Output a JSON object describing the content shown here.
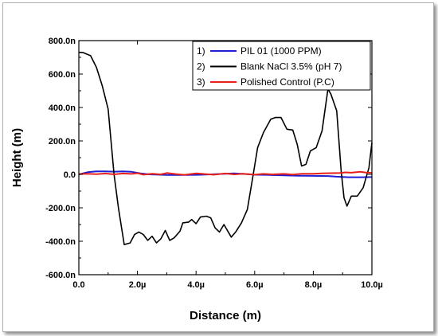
{
  "chart_data": {
    "type": "line",
    "xlabel": "Distance (m)",
    "ylabel": "Height (m)",
    "xlim": [
      0,
      10
    ],
    "ylim": [
      -600,
      800
    ],
    "x_units": "µm",
    "y_units": "nm",
    "grid": false,
    "legend_position": "top-right",
    "x_ticks": [
      0,
      2,
      4,
      6,
      8,
      10
    ],
    "x_tick_labels": [
      "0.0",
      "2.0µ",
      "4.0µ",
      "6.0µ",
      "8.0µ",
      "10.0µ"
    ],
    "y_ticks": [
      800,
      600,
      400,
      200,
      0,
      -200,
      -400,
      -600
    ],
    "y_tick_labels": [
      "800.0n",
      "600.0n",
      "400.0n",
      "200.0n",
      "0.0",
      "-200.0n",
      "-400.0n",
      "-600.0n"
    ],
    "series": [
      {
        "name": "PIL 01 (1000 PPM)",
        "legend_index": "1)",
        "color": "#1f1fd6",
        "x": [
          0,
          0.3,
          0.6,
          0.9,
          1.2,
          1.5,
          1.8,
          2.1,
          2.4,
          2.7,
          3.0,
          3.5,
          4.0,
          4.5,
          5.0,
          5.3,
          5.6,
          6.0,
          6.5,
          7.0,
          7.5,
          8.0,
          8.5,
          8.8,
          9.2,
          9.6,
          10.0
        ],
        "values": [
          0,
          13,
          18,
          18,
          16,
          18,
          15,
          6,
          0,
          -2,
          -4,
          -4,
          -3,
          0,
          4,
          6,
          3,
          -2,
          -4,
          -6,
          -8,
          -9,
          -10,
          -14,
          -17,
          -17,
          -16
        ]
      },
      {
        "name": "Blank NaCl 3.5% (pH 7)",
        "legend_index": "2)",
        "color": "#000000",
        "x": [
          0,
          0.15,
          0.4,
          0.6,
          0.8,
          1.0,
          1.2,
          1.35,
          1.55,
          1.75,
          1.9,
          2.05,
          2.2,
          2.35,
          2.5,
          2.65,
          2.8,
          2.95,
          3.1,
          3.25,
          3.45,
          3.55,
          3.75,
          3.85,
          4.0,
          4.15,
          4.35,
          4.5,
          4.65,
          4.8,
          4.95,
          5.2,
          5.35,
          5.55,
          5.75,
          5.95,
          6.1,
          6.3,
          6.55,
          6.7,
          6.9,
          7.1,
          7.3,
          7.45,
          7.6,
          7.75,
          7.9,
          8.1,
          8.3,
          8.5,
          8.6,
          8.8,
          8.95,
          9.05,
          9.15,
          9.3,
          9.5,
          9.7,
          9.9,
          10.0
        ],
        "values": [
          730,
          728,
          710,
          640,
          530,
          390,
          0,
          -200,
          -420,
          -410,
          -360,
          -345,
          -360,
          -395,
          -370,
          -410,
          -385,
          -335,
          -395,
          -380,
          -340,
          -290,
          -285,
          -270,
          -295,
          -255,
          -250,
          -260,
          -320,
          -345,
          -300,
          -375,
          -345,
          -290,
          -210,
          0,
          160,
          250,
          330,
          340,
          340,
          270,
          265,
          180,
          50,
          60,
          140,
          160,
          260,
          510,
          480,
          380,
          20,
          -140,
          -190,
          -130,
          -130,
          -80,
          40,
          190
        ]
      },
      {
        "name": "Polished Control (P.C)",
        "legend_index": "3)",
        "color": "#e8201a",
        "x": [
          0,
          0.3,
          0.6,
          0.9,
          1.2,
          1.5,
          1.8,
          2.0,
          2.2,
          2.5,
          2.8,
          3.0,
          3.3,
          3.6,
          4.0,
          4.3,
          4.6,
          5.0,
          5.3,
          5.6,
          6.0,
          6.3,
          6.6,
          7.0,
          7.3,
          7.6,
          8.0,
          8.3,
          8.6,
          8.9,
          9.1,
          9.3,
          9.6,
          9.8,
          10.0
        ],
        "values": [
          2,
          4,
          1,
          5,
          0,
          5,
          3,
          7,
          -2,
          4,
          0,
          8,
          2,
          -3,
          6,
          2,
          -2,
          5,
          0,
          4,
          -2,
          3,
          0,
          3,
          -1,
          4,
          4,
          6,
          7,
          8,
          12,
          10,
          15,
          11,
          9
        ]
      }
    ]
  }
}
